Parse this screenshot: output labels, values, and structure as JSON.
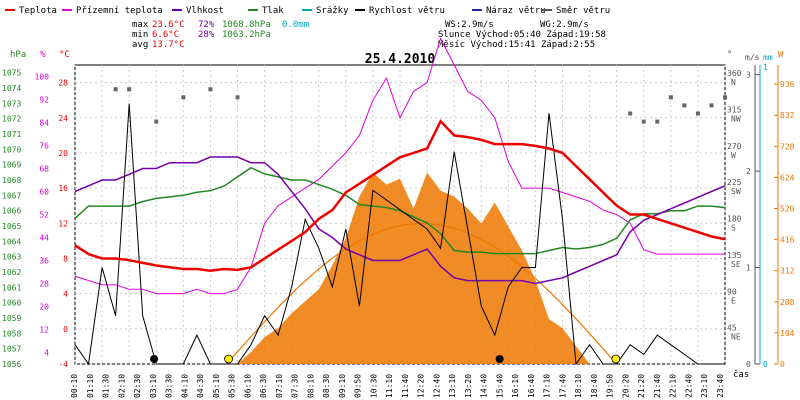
{
  "legend": [
    {
      "label": "Teplota",
      "color": "#ee0000"
    },
    {
      "label": "Přízemní teplota",
      "color": "#dd00dd"
    },
    {
      "label": "Vlhkost",
      "color": "#7700aa"
    },
    {
      "label": "Tlak",
      "color": "#228822"
    },
    {
      "label": "Srážky",
      "color": "#00aacc"
    },
    {
      "label": "Rychlost větru",
      "color": "#000000"
    },
    {
      "label": "Náraz větru",
      "color": "#2222aa"
    },
    {
      "label": "Směr větru",
      "color": "#555555"
    }
  ],
  "stats": {
    "max_label": "max",
    "max_temp": "23.6°C",
    "max_hum": "72%",
    "max_press": "1068.8hPa",
    "max_rain": "0.0mm",
    "min_label": "min",
    "min_temp": "6.6°C",
    "min_hum": "28%",
    "min_press": "1063.2hPa",
    "avg_label": "avg",
    "avg_temp": "13.7°C"
  },
  "info": {
    "ws": "WS:2.9m/s",
    "wg": "WG:2.9m/s",
    "sun": "Slunce Východ:05:40  Západ:19:58",
    "moon": "Měsíc  Východ:15:41  Západ:2:55"
  },
  "colors": {
    "temp": "#ee0000",
    "ground": "#dd00dd",
    "humidity": "#7700aa",
    "pressure": "#228822",
    "wind": "#000000",
    "solar": "#ee7700",
    "solar_line": "#ee7700",
    "dir": "#666666",
    "rain": "#00aacc"
  },
  "axes": {
    "hpa_title": "hPa",
    "pct_title": "%",
    "temp_title": "°C",
    "deg_title": "°",
    "ms_title": "m/s",
    "mm_title": "mm",
    "w_title": "W",
    "time_title": "čas",
    "hpa_ticks": [
      "1075",
      "1074",
      "1073",
      "1072",
      "1071",
      "1070",
      "1069",
      "1068",
      "1067",
      "1066",
      "1065",
      "1064",
      "1063",
      "1062",
      "1061",
      "1060",
      "1059",
      "1058",
      "1057",
      "1056"
    ],
    "pct_ticks": [
      "100",
      "92",
      "84",
      "76",
      "68",
      "60",
      "52",
      "44",
      "36",
      "28",
      "20",
      "12",
      "4"
    ],
    "temp_ticks": [
      "28",
      "24",
      "20",
      "16",
      "12",
      "8",
      "4",
      "0",
      "-4"
    ],
    "temp_ticks_left": [
      "28",
      "24",
      "20",
      "16",
      "12",
      "8",
      "4",
      "0",
      "-4"
    ],
    "deg_ticks": [
      "360",
      "315",
      "270",
      "225",
      "180",
      "135",
      "90",
      "45"
    ],
    "dir_labels": [
      "N",
      "NW",
      "W",
      "SW",
      "S",
      "SE",
      "E",
      "NE"
    ],
    "ms_ticks": [
      "3",
      "2",
      "1",
      "0"
    ],
    "mm_ticks": [
      "1",
      "0"
    ],
    "w_ticks": [
      "936",
      "832",
      "728",
      "624",
      "520",
      "416",
      "312",
      "208",
      "104",
      "0"
    ],
    "time_ticks": [
      "00:10",
      "01:10",
      "01:30",
      "02:10",
      "02:30",
      "03:10",
      "03:30",
      "04:10",
      "04:30",
      "05:10",
      "05:30",
      "06:10",
      "06:30",
      "07:10",
      "07:30",
      "08:10",
      "08:30",
      "09:10",
      "09:50",
      "10:30",
      "11:10",
      "11:40",
      "12:20",
      "12:40",
      "13:10",
      "13:20",
      "14:40",
      "15:40",
      "16:10",
      "16:40",
      "17:10",
      "17:40",
      "18:10",
      "18:40",
      "19:50",
      "20:20",
      "21:20",
      "21:40",
      "22:10",
      "22:40",
      "23:10",
      "23:40"
    ]
  },
  "chart_data": {
    "type": "line",
    "title": "25.4.2010",
    "x_hours": [
      0,
      0.5,
      1,
      1.5,
      2,
      2.5,
      3,
      3.5,
      4,
      4.5,
      5,
      5.5,
      6,
      6.5,
      7,
      7.5,
      8,
      8.5,
      9,
      9.5,
      10,
      10.5,
      11,
      11.5,
      12,
      12.5,
      13,
      13.5,
      14,
      14.5,
      15,
      15.5,
      16,
      16.5,
      17,
      17.5,
      18,
      18.5,
      19,
      19.5,
      20,
      20.5,
      21,
      21.5,
      22,
      22.5,
      23,
      23.5,
      24
    ],
    "series": [
      {
        "name": "Teplota",
        "unit": "°C",
        "values": [
          9.5,
          8.5,
          8.0,
          8.0,
          7.8,
          7.5,
          7.2,
          7.0,
          6.8,
          6.8,
          6.6,
          6.8,
          6.7,
          7.0,
          8.0,
          9.0,
          10.0,
          11.0,
          12.5,
          13.5,
          15.5,
          16.5,
          17.5,
          18.5,
          19.5,
          20.0,
          20.5,
          23.6,
          22.0,
          21.8,
          21.5,
          21.0,
          21.0,
          21.0,
          20.8,
          20.5,
          20.0,
          18.5,
          17.0,
          15.5,
          14.0,
          13.0,
          13.0,
          12.5,
          12.0,
          11.5,
          11.0,
          10.5,
          10.2
        ]
      },
      {
        "name": "Přízemní teplota",
        "unit": "°C",
        "values": [
          6.0,
          5.5,
          5.0,
          5.0,
          4.5,
          4.5,
          4.0,
          4.0,
          4.0,
          4.5,
          4.0,
          4.0,
          4.5,
          7.0,
          12.0,
          14.0,
          15.0,
          16.0,
          17.0,
          18.5,
          20.0,
          22.0,
          26.0,
          28.5,
          24.0,
          27.0,
          28.0,
          33.0,
          30.0,
          27.0,
          26.0,
          24.0,
          19.0,
          16.0,
          16.0,
          16.0,
          15.5,
          15.0,
          14.5,
          13.5,
          13.0,
          12.0,
          9.0,
          8.5,
          8.5,
          8.5,
          8.5,
          8.5,
          8.5
        ]
      },
      {
        "name": "Vlhkost",
        "unit": "%",
        "values": [
          60,
          62,
          64,
          64,
          66,
          68,
          68,
          70,
          70,
          70,
          72,
          72,
          72,
          70,
          70,
          66,
          60,
          54,
          47,
          44,
          40,
          38,
          36,
          36,
          36,
          38,
          40,
          34,
          30,
          29,
          29,
          29,
          29,
          29,
          28,
          29,
          30,
          32,
          34,
          36,
          38,
          46,
          50,
          52,
          54,
          56,
          58,
          60,
          62
        ]
      },
      {
        "name": "Tlak",
        "unit": "hPa",
        "values": [
          1065.5,
          1066.3,
          1066.3,
          1066.3,
          1066.3,
          1066.6,
          1066.8,
          1066.9,
          1067.0,
          1067.2,
          1067.3,
          1067.6,
          1068.2,
          1068.8,
          1068.4,
          1068.2,
          1068.0,
          1068.0,
          1067.7,
          1067.4,
          1067.0,
          1066.4,
          1066.3,
          1066.2,
          1066.0,
          1065.6,
          1065.2,
          1064.5,
          1063.4,
          1063.3,
          1063.3,
          1063.2,
          1063.2,
          1063.2,
          1063.2,
          1063.4,
          1063.6,
          1063.5,
          1063.6,
          1063.8,
          1064.2,
          1065.4,
          1065.8,
          1065.8,
          1066.0,
          1066.0,
          1066.3,
          1066.3,
          1066.2
        ]
      },
      {
        "name": "Rychlost větru",
        "unit": "m/s",
        "values": [
          0.2,
          0,
          1.0,
          0.5,
          2.7,
          0.5,
          0,
          0,
          0,
          0.3,
          0,
          0,
          0,
          0.2,
          0.5,
          0.3,
          0.8,
          1.5,
          1.2,
          0.8,
          1.4,
          0.6,
          1.8,
          1.7,
          1.6,
          1.5,
          1.4,
          1.2,
          2.2,
          1.4,
          0.6,
          0.3,
          0.8,
          1.0,
          1.0,
          2.6,
          1.5,
          0,
          0.2,
          0,
          0,
          0.2,
          0.1,
          0.3,
          0.2,
          0.1,
          0,
          0,
          0
        ]
      },
      {
        "name": "Sluneční záření",
        "unit": "W",
        "values": [
          0,
          0,
          0,
          0,
          0,
          0,
          0,
          0,
          0,
          0,
          0,
          0,
          0,
          40,
          90,
          120,
          170,
          210,
          250,
          330,
          420,
          560,
          640,
          600,
          620,
          520,
          640,
          580,
          560,
          520,
          470,
          540,
          460,
          380,
          280,
          150,
          120,
          60,
          0,
          0,
          0,
          0,
          0,
          0,
          0,
          0,
          0,
          0,
          0
        ]
      },
      {
        "name": "Směr větru",
        "unit": "°",
        "values": [
          null,
          null,
          null,
          340,
          340,
          null,
          300,
          null,
          330,
          null,
          340,
          null,
          330,
          null,
          null,
          null,
          null,
          null,
          null,
          null,
          null,
          null,
          null,
          null,
          null,
          null,
          null,
          null,
          null,
          null,
          null,
          null,
          null,
          null,
          null,
          null,
          null,
          null,
          null,
          null,
          null,
          310,
          300,
          300,
          330,
          320,
          310,
          320,
          330
        ]
      }
    ],
    "axis_ranges": {
      "temp_c": [
        -4,
        30
      ],
      "humidity_pct": [
        0,
        104
      ],
      "pressure_hpa": [
        1056,
        1075.5
      ],
      "wind_ms": [
        0,
        3.1
      ],
      "solar_w": [
        0,
        1000
      ],
      "dir_deg": [
        0,
        370
      ]
    },
    "sun_marks": [
      {
        "time": 5.67,
        "kind": "sunrise"
      },
      {
        "time": 19.97,
        "kind": "sunset"
      }
    ],
    "moon_marks": [
      {
        "time": 2.92,
        "kind": "moonset"
      },
      {
        "time": 15.68,
        "kind": "moonrise"
      }
    ]
  }
}
